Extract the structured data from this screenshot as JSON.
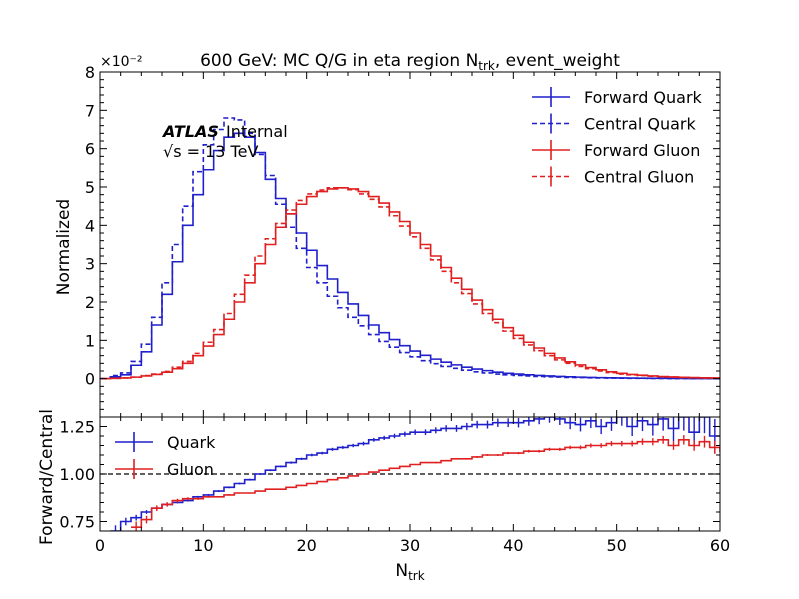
{
  "chart_data": {
    "type": "line",
    "title": "600 GeV: MC Q/G in eta region N",
    "title_sub": "trk",
    "title_tail": ", event_weight",
    "atlas_label": "ATLAS",
    "atlas_tag": "Internal",
    "energy_label": "√s = 13 TeV",
    "xlabel": "N",
    "xlabel_sub": "trk",
    "x_ticks": [
      "0",
      "10",
      "20",
      "30",
      "40",
      "50",
      "60"
    ],
    "xlim": [
      0,
      60
    ],
    "bin_width": 1,
    "top": {
      "ylabel": "Normalized",
      "scale_label": "×10⁻²",
      "ylim": [
        -1,
        8
      ],
      "y_ticks": [
        "0",
        "1",
        "2",
        "3",
        "4",
        "5",
        "6",
        "7",
        "8"
      ],
      "y_tick_values": [
        0,
        1,
        2,
        3,
        4,
        5,
        6,
        7,
        8
      ],
      "legend": [
        "Forward Quark",
        "Central Quark",
        "Forward Gluon",
        "Central Gluon"
      ],
      "series": [
        {
          "name": "Forward Quark",
          "style": "solid",
          "color": "#1f1fcc",
          "values": [
            0,
            0.05,
            0.1,
            0.35,
            0.7,
            1.4,
            2.2,
            3.05,
            4.0,
            4.8,
            5.45,
            5.95,
            6.3,
            6.4,
            6.3,
            5.9,
            5.2,
            4.7,
            4.3,
            3.8,
            3.35,
            2.95,
            2.6,
            2.25,
            1.95,
            1.65,
            1.4,
            1.2,
            1.02,
            0.86,
            0.72,
            0.61,
            0.51,
            0.43,
            0.36,
            0.3,
            0.25,
            0.21,
            0.17,
            0.14,
            0.12,
            0.1,
            0.085,
            0.07,
            0.058,
            0.048,
            0.04,
            0.033,
            0.027,
            0.022,
            0.018,
            0.015,
            0.012,
            0.01,
            0.008,
            0.006,
            0.005,
            0.004,
            0.003,
            0.002
          ]
        },
        {
          "name": "Central Quark",
          "style": "dashed",
          "color": "#1f1fcc",
          "values": [
            0,
            0.08,
            0.15,
            0.45,
            0.9,
            1.6,
            2.5,
            3.5,
            4.5,
            5.4,
            6.1,
            6.5,
            6.8,
            6.75,
            6.4,
            5.85,
            5.3,
            4.55,
            3.95,
            3.4,
            2.9,
            2.5,
            2.15,
            1.85,
            1.6,
            1.38,
            1.15,
            0.97,
            0.82,
            0.68,
            0.57,
            0.47,
            0.39,
            0.32,
            0.27,
            0.22,
            0.18,
            0.15,
            0.12,
            0.1,
            0.085,
            0.07,
            0.058,
            0.048,
            0.04,
            0.033,
            0.027,
            0.022,
            0.018,
            0.015,
            0.012,
            0.01,
            0.008,
            0.006,
            0.005,
            0.004,
            0.003,
            0.002,
            0.002,
            0.001
          ]
        },
        {
          "name": "Forward Gluon",
          "style": "solid",
          "color": "#e02020",
          "values": [
            0,
            0.01,
            0.02,
            0.04,
            0.07,
            0.11,
            0.17,
            0.26,
            0.4,
            0.6,
            0.85,
            1.15,
            1.55,
            2.0,
            2.5,
            3.0,
            3.5,
            3.95,
            4.3,
            4.55,
            4.75,
            4.88,
            4.95,
            4.98,
            4.95,
            4.88,
            4.75,
            4.58,
            4.35,
            4.1,
            3.8,
            3.5,
            3.2,
            2.9,
            2.62,
            2.33,
            2.05,
            1.8,
            1.55,
            1.33,
            1.13,
            0.95,
            0.8,
            0.66,
            0.54,
            0.44,
            0.36,
            0.29,
            0.23,
            0.18,
            0.14,
            0.11,
            0.09,
            0.07,
            0.055,
            0.045,
            0.035,
            0.028,
            0.022,
            0.018
          ]
        },
        {
          "name": "Central Gluon",
          "style": "dashed",
          "color": "#e02020",
          "values": [
            0,
            0.01,
            0.02,
            0.04,
            0.08,
            0.12,
            0.19,
            0.3,
            0.45,
            0.66,
            0.95,
            1.28,
            1.7,
            2.2,
            2.7,
            3.2,
            3.65,
            4.05,
            4.4,
            4.65,
            4.82,
            4.92,
            4.98,
            4.98,
            4.93,
            4.82,
            4.68,
            4.48,
            4.25,
            3.98,
            3.7,
            3.4,
            3.1,
            2.8,
            2.5,
            2.22,
            1.95,
            1.7,
            1.46,
            1.24,
            1.05,
            0.88,
            0.73,
            0.6,
            0.49,
            0.4,
            0.32,
            0.26,
            0.2,
            0.16,
            0.12,
            0.1,
            0.08,
            0.06,
            0.048,
            0.038,
            0.03,
            0.024,
            0.019,
            0.015
          ]
        }
      ]
    },
    "ratio": {
      "ylabel": "Forward/Central",
      "ylim": [
        0.7,
        1.3
      ],
      "y_ticks": [
        "0.75",
        "1.00",
        "1.25"
      ],
      "y_tick_values": [
        0.75,
        1.0,
        1.25
      ],
      "reference_line": 1.0,
      "legend": [
        "Quark",
        "Gluon"
      ],
      "series": [
        {
          "name": "Quark",
          "color": "#1f1fcc",
          "x_start": 1,
          "values": [
            0.7,
            0.75,
            0.77,
            0.8,
            0.82,
            0.84,
            0.85,
            0.86,
            0.88,
            0.89,
            0.91,
            0.93,
            0.95,
            0.97,
            1.0,
            1.02,
            1.04,
            1.06,
            1.08,
            1.1,
            1.11,
            1.13,
            1.14,
            1.15,
            1.16,
            1.18,
            1.19,
            1.2,
            1.21,
            1.22,
            1.22,
            1.23,
            1.24,
            1.24,
            1.25,
            1.26,
            1.26,
            1.27,
            1.27,
            1.27,
            1.28,
            1.29,
            1.3,
            1.29,
            1.27,
            1.26,
            1.28,
            1.25,
            1.27,
            1.3,
            1.25,
            1.28,
            1.26,
            1.29,
            1.24,
            1.3,
            1.22,
            1.3,
            1.2
          ],
          "errors": [
            0.03,
            0.02,
            0.015,
            0.01,
            0.008,
            0.006,
            0.005,
            0.005,
            0.005,
            0.005,
            0.005,
            0.005,
            0.005,
            0.005,
            0.005,
            0.005,
            0.005,
            0.006,
            0.006,
            0.007,
            0.007,
            0.008,
            0.008,
            0.009,
            0.01,
            0.01,
            0.011,
            0.012,
            0.013,
            0.014,
            0.015,
            0.016,
            0.017,
            0.018,
            0.019,
            0.02,
            0.021,
            0.022,
            0.023,
            0.025,
            0.026,
            0.028,
            0.03,
            0.032,
            0.034,
            0.036,
            0.038,
            0.04,
            0.043,
            0.046,
            0.05,
            0.054,
            0.058,
            0.062,
            0.067,
            0.072,
            0.078,
            0.085,
            0.09
          ]
        },
        {
          "name": "Gluon",
          "color": "#e02020",
          "x_start": 3,
          "values": [
            0.72,
            0.76,
            0.82,
            0.84,
            0.86,
            0.87,
            0.87,
            0.88,
            0.88,
            0.89,
            0.9,
            0.9,
            0.91,
            0.92,
            0.92,
            0.93,
            0.94,
            0.95,
            0.96,
            0.97,
            0.98,
            0.99,
            1.0,
            1.01,
            1.02,
            1.03,
            1.04,
            1.05,
            1.06,
            1.06,
            1.07,
            1.08,
            1.08,
            1.09,
            1.1,
            1.1,
            1.11,
            1.11,
            1.12,
            1.12,
            1.13,
            1.13,
            1.14,
            1.14,
            1.15,
            1.15,
            1.16,
            1.16,
            1.16,
            1.17,
            1.17,
            1.18,
            1.15,
            1.18,
            1.15,
            1.17,
            1.14,
            1.12
          ],
          "errors": [
            0.03,
            0.02,
            0.015,
            0.012,
            0.01,
            0.008,
            0.006,
            0.005,
            0.004,
            0.004,
            0.003,
            0.003,
            0.003,
            0.003,
            0.003,
            0.003,
            0.003,
            0.003,
            0.003,
            0.003,
            0.003,
            0.003,
            0.003,
            0.003,
            0.003,
            0.003,
            0.003,
            0.003,
            0.003,
            0.004,
            0.004,
            0.004,
            0.004,
            0.005,
            0.005,
            0.005,
            0.006,
            0.006,
            0.007,
            0.007,
            0.008,
            0.008,
            0.009,
            0.01,
            0.011,
            0.012,
            0.013,
            0.014,
            0.015,
            0.017,
            0.019,
            0.021,
            0.023,
            0.025,
            0.028,
            0.031,
            0.034,
            0.038
          ]
        }
      ]
    }
  }
}
